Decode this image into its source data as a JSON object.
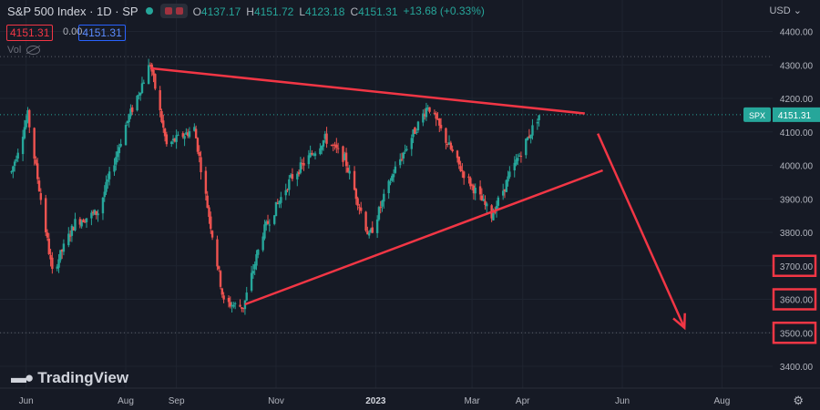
{
  "header": {
    "symbol_title": "S&P 500 Index · 1D · SP",
    "o_label": "O",
    "o_value": "4137.17",
    "h_label": "H",
    "h_value": "4151.72",
    "l_label": "L",
    "l_value": "4123.18",
    "c_label": "C",
    "c_value": "4151.31",
    "change": "+13.68 (+0.33%)",
    "sell_price": "4151.31",
    "spread": "0.00",
    "buy_price": "4151.31",
    "volume_label": "Vol",
    "currency": "USD"
  },
  "branding": {
    "name": "TradingView"
  },
  "colors": {
    "up": "#26a69a",
    "down": "#ef5350",
    "annotation": "#f23645",
    "background": "#161a25"
  },
  "icons": [
    "chevron-down-icon",
    "eye-hidden-icon",
    "tradingview-logo-icon",
    "gear-icon"
  ],
  "chart_data": {
    "type": "candlestick",
    "symbol": "SPX",
    "x_ticks": [
      "Jun",
      "Aug",
      "Sep",
      "Nov",
      "2023",
      "Mar",
      "Apr",
      "Jun",
      "Aug"
    ],
    "y_ticks": [
      "3400.00",
      "3500.00",
      "3600.00",
      "3700.00",
      "3800.00",
      "3900.00",
      "4000.00",
      "4100.00",
      "4200.00",
      "4300.00",
      "4400.00"
    ],
    "ylim": [
      3350,
      4420
    ],
    "last_price": 4151.31,
    "last_price_label": "4151.31",
    "highlighted_levels": [
      "3700.00",
      "3600.00",
      "3500.00"
    ],
    "guide_levels": [
      4325,
      3500
    ],
    "price_path": [
      [
        "2022-05-23",
        3980
      ],
      [
        "2022-06-02",
        4150
      ],
      [
        "2022-06-17",
        3680
      ],
      [
        "2022-07-01",
        3830
      ],
      [
        "2022-07-15",
        3860
      ],
      [
        "2022-08-01",
        4120
      ],
      [
        "2022-08-16",
        4305
      ],
      [
        "2022-08-26",
        4060
      ],
      [
        "2022-09-12",
        4110
      ],
      [
        "2022-09-30",
        3590
      ],
      [
        "2022-10-12",
        3577
      ],
      [
        "2022-10-24",
        3800
      ],
      [
        "2022-11-10",
        3960
      ],
      [
        "2022-12-01",
        4080
      ],
      [
        "2022-12-13",
        4020
      ],
      [
        "2022-12-28",
        3785
      ],
      [
        "2023-01-12",
        3980
      ],
      [
        "2023-02-02",
        4180
      ],
      [
        "2023-02-22",
        3990
      ],
      [
        "2023-03-13",
        3850
      ],
      [
        "2023-03-24",
        3970
      ],
      [
        "2023-04-11",
        4151
      ]
    ],
    "annotations": [
      {
        "type": "trendline",
        "from": [
          "2022-08-16",
          4290
        ],
        "to": [
          "2023-05-09",
          4155
        ]
      },
      {
        "type": "trendline",
        "from": [
          "2022-10-13",
          3585
        ],
        "to": [
          "2023-05-20",
          3985
        ]
      },
      {
        "type": "arrow",
        "from": [
          "2023-05-17",
          4095
        ],
        "to": [
          "2023-07-09",
          3515
        ]
      }
    ]
  }
}
